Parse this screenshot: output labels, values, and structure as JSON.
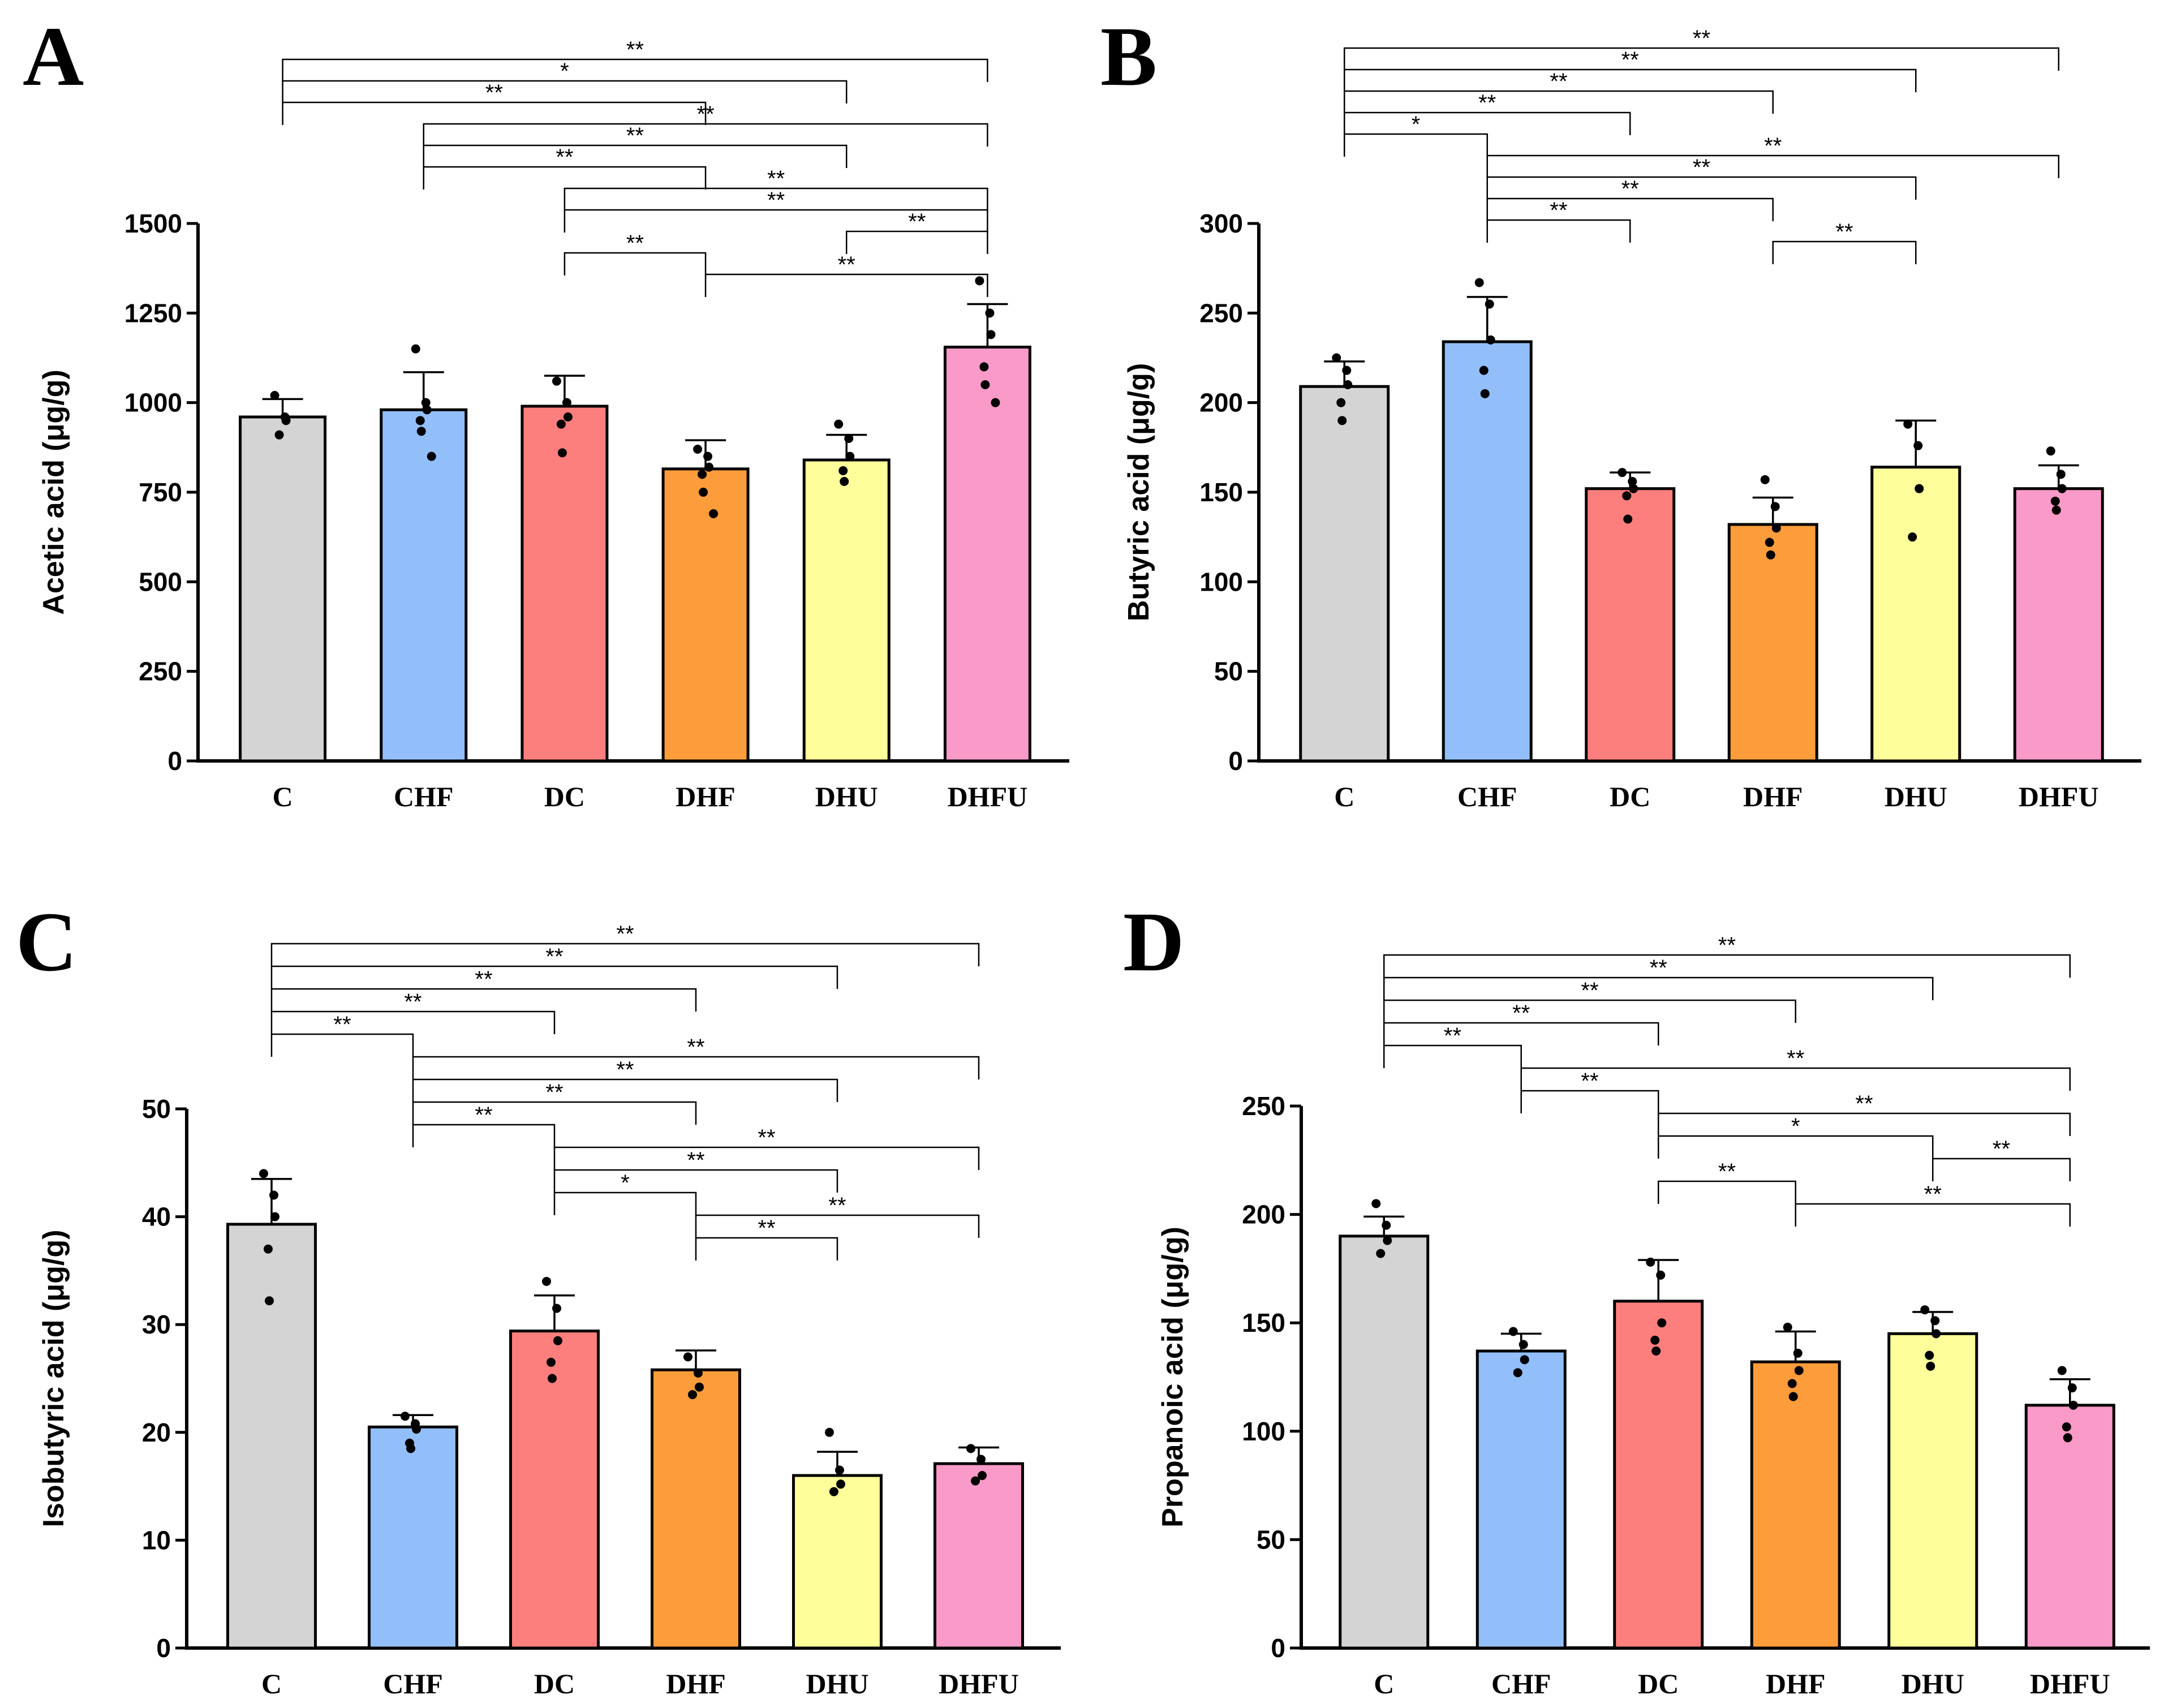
{
  "colors": {
    "C": "#d4d4d4",
    "CHF": "#92bff9",
    "DC": "#fd7f7d",
    "DHF": "#fd9c3b",
    "DHU": "#fefe9b",
    "DHFU": "#f99ac8"
  },
  "chart_data": [
    {
      "panel": "A",
      "type": "bar",
      "ylabel": "Acetic acid (μg/g)",
      "ylim": [
        0,
        1500
      ],
      "yticks": [
        0,
        250,
        500,
        750,
        1000,
        1250,
        1500
      ],
      "categories": [
        "C",
        "CHF",
        "DC",
        "DHF",
        "DHU",
        "DHFU"
      ],
      "values": [
        960,
        980,
        990,
        815,
        840,
        1155
      ],
      "errors": [
        50,
        105,
        85,
        80,
        70,
        120
      ],
      "points": [
        [
          1020,
          960,
          950,
          910
        ],
        [
          1150,
          1000,
          980,
          950,
          920,
          850
        ],
        [
          1060,
          1000,
          960,
          940,
          860
        ],
        [
          870,
          850,
          820,
          800,
          750,
          690
        ],
        [
          940,
          900,
          850,
          810,
          780
        ],
        [
          1340,
          1250,
          1190,
          1100,
          1050,
          1000
        ]
      ],
      "comparisons": [
        {
          "a": 0,
          "b": 5,
          "label": "**"
        },
        {
          "a": 0,
          "b": 4,
          "label": "*"
        },
        {
          "a": 0,
          "b": 3,
          "label": "**"
        },
        {
          "a": 1,
          "b": 5,
          "label": "**"
        },
        {
          "a": 1,
          "b": 4,
          "label": "**"
        },
        {
          "a": 1,
          "b": 3,
          "label": "**"
        },
        {
          "a": 2,
          "b": 5,
          "label": "**"
        },
        {
          "a": 2,
          "b": 5,
          "label": "**"
        },
        {
          "a": 4,
          "b": 5,
          "label": "**"
        },
        {
          "a": 2,
          "b": 3,
          "label": "**"
        },
        {
          "a": 3,
          "b": 5,
          "label": "**"
        }
      ]
    },
    {
      "panel": "B",
      "type": "bar",
      "ylabel": "Butyric acid  (μg/g)",
      "ylim": [
        0,
        300
      ],
      "yticks": [
        0,
        50,
        100,
        150,
        200,
        250,
        300
      ],
      "categories": [
        "C",
        "CHF",
        "DC",
        "DHF",
        "DHU",
        "DHFU"
      ],
      "values": [
        209,
        234,
        152,
        132,
        164,
        152
      ],
      "errors": [
        14,
        25,
        9,
        15,
        26,
        13
      ],
      "points": [
        [
          225,
          218,
          210,
          200,
          190
        ],
        [
          267,
          255,
          235,
          218,
          205
        ],
        [
          161,
          156,
          152,
          148,
          135
        ],
        [
          157,
          142,
          130,
          122,
          115
        ],
        [
          188,
          176,
          152,
          125
        ],
        [
          173,
          160,
          152,
          145,
          140
        ]
      ],
      "comparisons": [
        {
          "a": 0,
          "b": 5,
          "label": "**"
        },
        {
          "a": 0,
          "b": 4,
          "label": "**"
        },
        {
          "a": 0,
          "b": 3,
          "label": "**"
        },
        {
          "a": 0,
          "b": 2,
          "label": "**"
        },
        {
          "a": 0,
          "b": 1,
          "label": "*"
        },
        {
          "a": 1,
          "b": 5,
          "label": "**"
        },
        {
          "a": 1,
          "b": 4,
          "label": "**"
        },
        {
          "a": 1,
          "b": 3,
          "label": "**"
        },
        {
          "a": 1,
          "b": 2,
          "label": "**"
        },
        {
          "a": 3,
          "b": 4,
          "label": "**"
        }
      ]
    },
    {
      "panel": "C",
      "type": "bar",
      "ylabel": "Isobutyric acid  (μg/g)",
      "ylim": [
        0,
        50
      ],
      "yticks": [
        0,
        10,
        20,
        30,
        40,
        50
      ],
      "categories": [
        "C",
        "CHF",
        "DC",
        "DHF",
        "DHU",
        "DHFU"
      ],
      "values": [
        39.3,
        20.5,
        29.4,
        25.8,
        16.0,
        17.1
      ],
      "errors": [
        4.2,
        1.1,
        3.3,
        1.8,
        2.2,
        1.5
      ],
      "points": [
        [
          44.0,
          42.0,
          40.0,
          37.0,
          32.2
        ],
        [
          21.5,
          20.8,
          20.3,
          19.0,
          18.5
        ],
        [
          34.0,
          31.5,
          28.5,
          26.5,
          25.0
        ],
        [
          27.0,
          25.5,
          24.2,
          23.5
        ],
        [
          20.0,
          16.5,
          15.2,
          14.5
        ],
        [
          18.5,
          17.5,
          16.0,
          15.5
        ]
      ],
      "comparisons": [
        {
          "a": 0,
          "b": 5,
          "label": "**"
        },
        {
          "a": 0,
          "b": 4,
          "label": "**"
        },
        {
          "a": 0,
          "b": 3,
          "label": "**"
        },
        {
          "a": 0,
          "b": 2,
          "label": "**"
        },
        {
          "a": 0,
          "b": 1,
          "label": "**"
        },
        {
          "a": 1,
          "b": 5,
          "label": "**"
        },
        {
          "a": 1,
          "b": 4,
          "label": "**"
        },
        {
          "a": 1,
          "b": 3,
          "label": "**"
        },
        {
          "a": 1,
          "b": 2,
          "label": "**"
        },
        {
          "a": 2,
          "b": 5,
          "label": "**"
        },
        {
          "a": 2,
          "b": 4,
          "label": "**"
        },
        {
          "a": 2,
          "b": 3,
          "label": "*"
        },
        {
          "a": 3,
          "b": 5,
          "label": "**"
        },
        {
          "a": 3,
          "b": 4,
          "label": "**"
        }
      ]
    },
    {
      "panel": "D",
      "type": "bar",
      "ylabel": "Propanoic acid  (μg/g)",
      "ylim": [
        0,
        250
      ],
      "yticks": [
        0,
        50,
        100,
        150,
        200,
        250
      ],
      "categories": [
        "C",
        "CHF",
        "DC",
        "DHF",
        "DHU",
        "DHFU"
      ],
      "values": [
        190,
        137,
        160,
        132,
        145,
        112
      ],
      "errors": [
        9,
        8,
        19,
        14,
        10,
        12
      ],
      "points": [
        [
          205,
          195,
          188,
          182
        ],
        [
          146,
          140,
          133,
          127
        ],
        [
          178,
          172,
          150,
          142,
          137
        ],
        [
          148,
          136,
          128,
          122,
          116
        ],
        [
          156,
          151,
          145,
          135,
          130
        ],
        [
          128,
          120,
          112,
          102,
          97
        ]
      ],
      "comparisons": [
        {
          "a": 0,
          "b": 5,
          "label": "**"
        },
        {
          "a": 0,
          "b": 4,
          "label": "**"
        },
        {
          "a": 0,
          "b": 3,
          "label": "**"
        },
        {
          "a": 0,
          "b": 2,
          "label": "**"
        },
        {
          "a": 0,
          "b": 1,
          "label": "**"
        },
        {
          "a": 1,
          "b": 5,
          "label": "**"
        },
        {
          "a": 1,
          "b": 2,
          "label": "**"
        },
        {
          "a": 2,
          "b": 5,
          "label": "**"
        },
        {
          "a": 2,
          "b": 4,
          "label": "*"
        },
        {
          "a": 4,
          "b": 5,
          "label": "**"
        },
        {
          "a": 2,
          "b": 3,
          "label": "**"
        },
        {
          "a": 3,
          "b": 5,
          "label": "**"
        }
      ]
    }
  ]
}
